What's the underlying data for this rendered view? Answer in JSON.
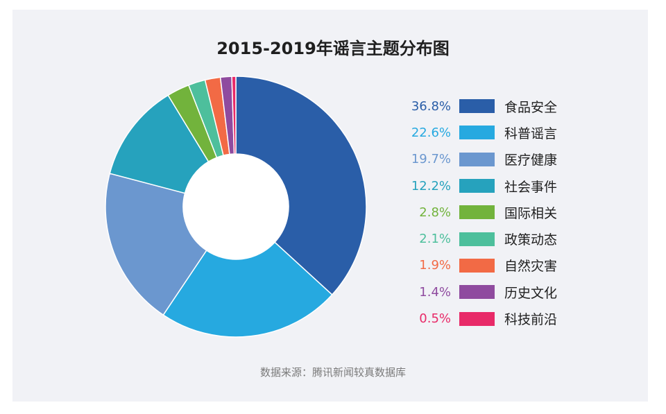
{
  "chart_data": {
    "type": "pie",
    "title": "2015-2019年谣言主题分布图",
    "slices": [
      {
        "label": "食品安全",
        "value": 36.8,
        "pct_label": "36.8%",
        "color": "#2a5ea8"
      },
      {
        "label": "科普谣言",
        "value": 22.6,
        "pct_label": "22.6%",
        "color": "#26a9e0"
      },
      {
        "label": "医疗健康",
        "value": 19.7,
        "pct_label": "19.7%",
        "color": "#6b97cf"
      },
      {
        "label": "社会事件",
        "value": 12.2,
        "pct_label": "12.2%",
        "color": "#26a2bd"
      },
      {
        "label": "国际相关",
        "value": 2.8,
        "pct_label": "2.8%",
        "color": "#72b33c"
      },
      {
        "label": "政策动态",
        "value": 2.1,
        "pct_label": "2.1%",
        "color": "#4dbf9c"
      },
      {
        "label": "自然灾害",
        "value": 1.9,
        "pct_label": "1.9%",
        "color": "#f26a45"
      },
      {
        "label": "历史文化",
        "value": 1.4,
        "pct_label": "1.4%",
        "color": "#8f4b9f"
      },
      {
        "label": "科技前沿",
        "value": 0.5,
        "pct_label": "0.5%",
        "color": "#e82a68"
      }
    ],
    "legend_position": "right"
  },
  "source_note": "数据来源：腾讯新闻较真数据库"
}
